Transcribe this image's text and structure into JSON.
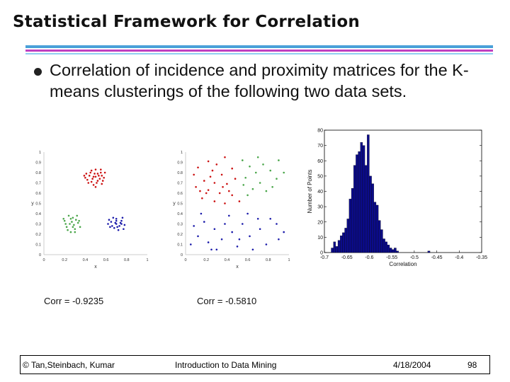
{
  "slide": {
    "title": "Statistical Framework for Correlation",
    "bullet": "Correlation of incidence and proximity matrices for the K-means clusterings of the following two data sets.",
    "corr_left": "Corr = -0.9235",
    "corr_right": "Corr = -0.5810"
  },
  "footer": {
    "authors": "© Tan,Steinbach, Kumar",
    "course": "Introduction to Data Mining",
    "date": "4/18/2004",
    "page": "98"
  },
  "colors": {
    "red": "#cc1111",
    "green": "#4aa64a",
    "blue": "#1a1aaa",
    "bar": "#0b0b8a",
    "title_rule": "#c040c0",
    "blue_rule": "#4aa0d8"
  },
  "chart_data": [
    {
      "type": "scatter",
      "title": "",
      "xlabel": "x",
      "ylabel": "y",
      "xlim": [
        0,
        1
      ],
      "ylim": [
        0,
        1
      ],
      "xticks": [
        "0",
        "0.2",
        "0.4",
        "0.6",
        "0.8",
        "1"
      ],
      "yticks": [
        "0",
        "0.1",
        "0.2",
        "0.3",
        "0.4",
        "0.5",
        "0.6",
        "0.7",
        "0.8",
        "0.9",
        "1"
      ],
      "series": [
        {
          "color": "#cc1111",
          "points": [
            [
              0.5,
              0.76
            ],
            [
              0.45,
              0.8
            ],
            [
              0.55,
              0.8
            ],
            [
              0.52,
              0.72
            ],
            [
              0.4,
              0.75
            ],
            [
              0.58,
              0.75
            ],
            [
              0.48,
              0.68
            ],
            [
              0.43,
              0.7
            ],
            [
              0.56,
              0.69
            ],
            [
              0.5,
              0.83
            ],
            [
              0.47,
              0.74
            ],
            [
              0.53,
              0.77
            ],
            [
              0.41,
              0.79
            ],
            [
              0.59,
              0.8
            ],
            [
              0.46,
              0.71
            ],
            [
              0.51,
              0.7
            ],
            [
              0.44,
              0.77
            ],
            [
              0.57,
              0.72
            ],
            [
              0.49,
              0.79
            ],
            [
              0.54,
              0.74
            ],
            [
              0.42,
              0.73
            ],
            [
              0.5,
              0.66
            ],
            [
              0.46,
              0.82
            ],
            [
              0.55,
              0.83
            ],
            [
              0.52,
              0.79
            ],
            [
              0.39,
              0.77
            ],
            [
              0.48,
              0.76
            ],
            [
              0.56,
              0.77
            ]
          ]
        },
        {
          "color": "#4aa64a",
          "points": [
            [
              0.25,
              0.3
            ],
            [
              0.3,
              0.25
            ],
            [
              0.2,
              0.33
            ],
            [
              0.28,
              0.36
            ],
            [
              0.33,
              0.31
            ],
            [
              0.22,
              0.27
            ],
            [
              0.26,
              0.22
            ],
            [
              0.31,
              0.34
            ],
            [
              0.24,
              0.38
            ],
            [
              0.35,
              0.27
            ],
            [
              0.27,
              0.32
            ],
            [
              0.21,
              0.3
            ],
            [
              0.29,
              0.29
            ],
            [
              0.32,
              0.38
            ],
            [
              0.23,
              0.24
            ],
            [
              0.34,
              0.33
            ],
            [
              0.26,
              0.35
            ],
            [
              0.3,
              0.22
            ],
            [
              0.19,
              0.35
            ],
            [
              0.28,
              0.27
            ]
          ]
        },
        {
          "color": "#1a1aaa",
          "points": [
            [
              0.7,
              0.3
            ],
            [
              0.65,
              0.32
            ],
            [
              0.75,
              0.33
            ],
            [
              0.68,
              0.26
            ],
            [
              0.73,
              0.28
            ],
            [
              0.62,
              0.3
            ],
            [
              0.78,
              0.29
            ],
            [
              0.7,
              0.35
            ],
            [
              0.66,
              0.28
            ],
            [
              0.72,
              0.24
            ],
            [
              0.76,
              0.36
            ],
            [
              0.63,
              0.34
            ],
            [
              0.69,
              0.31
            ],
            [
              0.74,
              0.31
            ],
            [
              0.67,
              0.36
            ],
            [
              0.71,
              0.27
            ],
            [
              0.77,
              0.25
            ],
            [
              0.64,
              0.27
            ],
            [
              0.7,
              0.33
            ],
            [
              0.75,
              0.3
            ]
          ]
        }
      ]
    },
    {
      "type": "scatter",
      "title": "",
      "xlabel": "x",
      "ylabel": "y",
      "xlim": [
        0,
        1
      ],
      "ylim": [
        0,
        1
      ],
      "xticks": [
        "0",
        "0.2",
        "0.4",
        "0.6",
        "0.8",
        "1"
      ],
      "yticks": [
        "0",
        "0.1",
        "0.2",
        "0.3",
        "0.4",
        "0.5",
        "0.6",
        "0.7",
        "0.8",
        "0.9",
        "1"
      ],
      "series": [
        {
          "color": "#cc1111",
          "points": [
            [
              0.22,
              0.91
            ],
            [
              0.38,
              0.95
            ],
            [
              0.3,
              0.88
            ],
            [
              0.12,
              0.85
            ],
            [
              0.26,
              0.82
            ],
            [
              0.45,
              0.84
            ],
            [
              0.35,
              0.78
            ],
            [
              0.18,
              0.72
            ],
            [
              0.28,
              0.7
            ],
            [
              0.4,
              0.69
            ],
            [
              0.1,
              0.66
            ],
            [
              0.22,
              0.63
            ],
            [
              0.33,
              0.6
            ],
            [
              0.45,
              0.58
            ],
            [
              0.16,
              0.55
            ],
            [
              0.28,
              0.52
            ],
            [
              0.38,
              0.5
            ],
            [
              0.52,
              0.52
            ],
            [
              0.08,
              0.78
            ],
            [
              0.48,
              0.74
            ],
            [
              0.2,
              0.6
            ],
            [
              0.36,
              0.66
            ],
            [
              0.24,
              0.76
            ],
            [
              0.14,
              0.62
            ],
            [
              0.42,
              0.62
            ]
          ]
        },
        {
          "color": "#4aa64a",
          "points": [
            [
              0.55,
              0.92
            ],
            [
              0.62,
              0.86
            ],
            [
              0.75,
              0.88
            ],
            [
              0.68,
              0.8
            ],
            [
              0.82,
              0.82
            ],
            [
              0.58,
              0.75
            ],
            [
              0.72,
              0.7
            ],
            [
              0.88,
              0.74
            ],
            [
              0.65,
              0.64
            ],
            [
              0.78,
              0.62
            ],
            [
              0.9,
              0.92
            ],
            [
              0.6,
              0.58
            ],
            [
              0.84,
              0.66
            ],
            [
              0.7,
              0.95
            ],
            [
              0.95,
              0.8
            ],
            [
              0.56,
              0.68
            ]
          ]
        },
        {
          "color": "#1a1aaa",
          "points": [
            [
              0.08,
              0.28
            ],
            [
              0.18,
              0.32
            ],
            [
              0.28,
              0.25
            ],
            [
              0.38,
              0.3
            ],
            [
              0.12,
              0.18
            ],
            [
              0.22,
              0.12
            ],
            [
              0.35,
              0.15
            ],
            [
              0.45,
              0.22
            ],
            [
              0.55,
              0.3
            ],
            [
              0.62,
              0.18
            ],
            [
              0.72,
              0.25
            ],
            [
              0.82,
              0.35
            ],
            [
              0.9,
              0.15
            ],
            [
              0.5,
              0.08
            ],
            [
              0.3,
              0.05
            ],
            [
              0.65,
              0.05
            ],
            [
              0.78,
              0.1
            ],
            [
              0.42,
              0.38
            ],
            [
              0.6,
              0.4
            ],
            [
              0.88,
              0.3
            ],
            [
              0.15,
              0.4
            ],
            [
              0.25,
              0.05
            ],
            [
              0.7,
              0.35
            ],
            [
              0.95,
              0.22
            ],
            [
              0.52,
              0.15
            ],
            [
              0.05,
              0.1
            ]
          ]
        }
      ]
    },
    {
      "type": "bar",
      "title": "",
      "xlabel": "Correlation",
      "ylabel": "Number of Points",
      "xlim": [
        -0.7,
        -0.35
      ],
      "ylim": [
        0,
        80
      ],
      "xticks": [
        -0.7,
        -0.65,
        -0.6,
        -0.55,
        -0.5,
        -0.45,
        -0.4,
        -0.35
      ],
      "xtick_labels": [
        "-0.7",
        "-0.65",
        "-0.6",
        "-0.55",
        "-0.5",
        "-0.45",
        "-0.4",
        "-0.35"
      ],
      "yticks": [
        0,
        10,
        20,
        30,
        40,
        50,
        60,
        70,
        80
      ],
      "yticks_labels": [
        "0",
        "10",
        "20",
        "30",
        "40",
        "50",
        "60",
        "70",
        "80"
      ],
      "bin_start": -0.685,
      "bin_width": 0.005,
      "values": [
        3,
        7,
        4,
        8,
        11,
        13,
        16,
        22,
        35,
        42,
        57,
        64,
        66,
        72,
        70,
        57,
        77,
        50,
        45,
        33,
        31,
        21,
        15,
        9,
        7,
        5,
        3,
        2,
        3,
        1,
        0,
        0,
        0,
        0,
        0,
        0,
        0,
        0,
        0,
        0,
        0,
        0,
        0,
        1
      ]
    }
  ]
}
